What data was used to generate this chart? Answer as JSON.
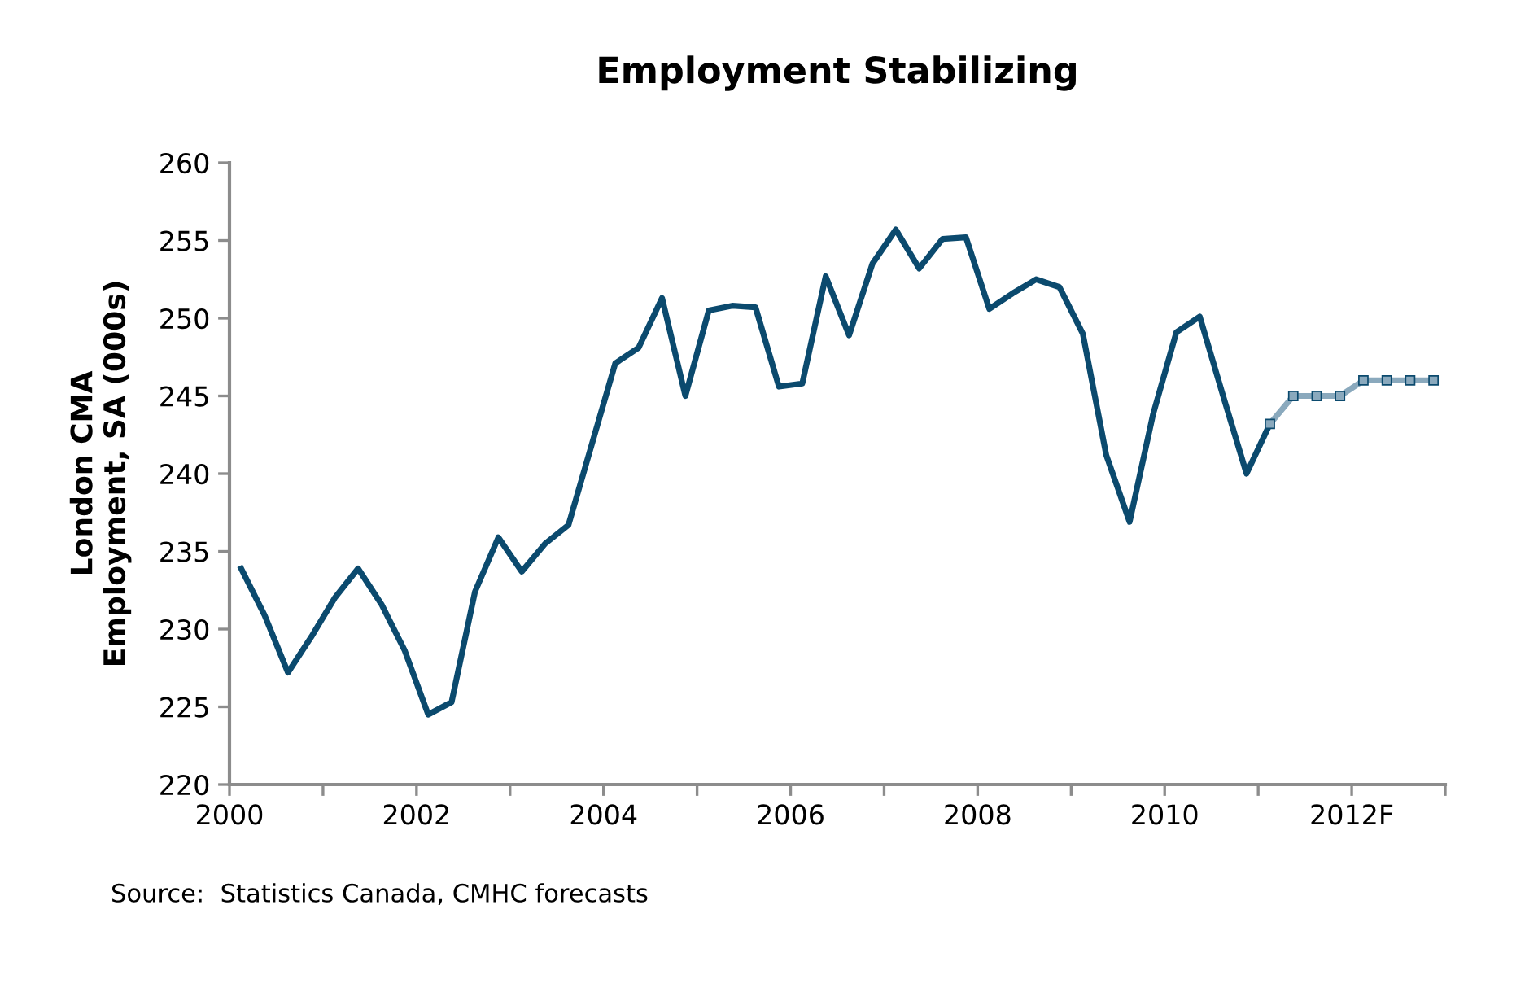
{
  "chart_data": {
    "type": "line",
    "title": "Employment Stabilizing",
    "ylabel": "London CMA\nEmployment, SA (000s)",
    "annotations": [
      "Source:  Statistics Canada, CMHC forecasts"
    ],
    "series": [
      {
        "color": "#0b4a6e",
        "x": [
          2000.125,
          2000.375,
          2000.625,
          2000.875,
          2001.125,
          2001.375,
          2001.625,
          2001.875,
          2002.125,
          2002.375,
          2002.625,
          2002.875,
          2003.125,
          2003.375,
          2003.625,
          2003.875,
          2004.125,
          2004.375,
          2004.625,
          2004.875,
          2005.125,
          2005.375,
          2005.625,
          2005.875,
          2006.125,
          2006.375,
          2006.625,
          2006.875,
          2007.125,
          2007.375,
          2007.625,
          2007.875,
          2008.125,
          2008.375,
          2008.625,
          2008.875,
          2009.125,
          2009.375,
          2009.625,
          2009.875,
          2010.125,
          2010.375,
          2010.625,
          2010.875,
          2011.125
        ],
        "values": [
          233.9,
          230.9,
          227.2,
          229.5,
          232.0,
          233.9,
          231.6,
          228.6,
          224.5,
          225.3,
          232.4,
          235.9,
          233.7,
          235.5,
          236.7,
          241.9,
          247.1,
          248.1,
          251.3,
          245.0,
          250.5,
          250.8,
          250.7,
          245.6,
          245.8,
          252.7,
          248.9,
          253.5,
          255.7,
          253.2,
          255.1,
          255.2,
          250.6,
          251.6,
          252.5,
          252.0,
          249.0,
          241.2,
          236.9,
          243.8,
          249.1,
          250.1,
          245.0,
          240.0,
          243.2
        ]
      },
      {
        "color": "#8aa9bd",
        "marker": "square",
        "x": [
          2011.125,
          2011.375,
          2011.625,
          2011.875,
          2012.125,
          2012.375,
          2012.625,
          2012.875
        ],
        "values": [
          243.2,
          245.0,
          245.0,
          245.0,
          246.0,
          246.0,
          246.0,
          246.0
        ]
      }
    ],
    "xlim": [
      2000,
      2013
    ],
    "xticks": [
      2000,
      {
        "value": 2001,
        "label": null
      },
      2002,
      {
        "value": 2003,
        "label": null
      },
      2004,
      {
        "value": 2005,
        "label": null
      },
      2006,
      {
        "value": 2007,
        "label": null
      },
      2008,
      {
        "value": 2009,
        "label": null
      },
      2010,
      {
        "value": 2011,
        "label": null
      },
      {
        "value": 2012,
        "label": "2012F"
      },
      {
        "value": 2013,
        "label": null
      }
    ],
    "ylim": [
      220,
      260
    ],
    "yticks": [
      220,
      225,
      230,
      235,
      240,
      245,
      250,
      255,
      260
    ],
    "grid": false,
    "line_style": "solid"
  }
}
